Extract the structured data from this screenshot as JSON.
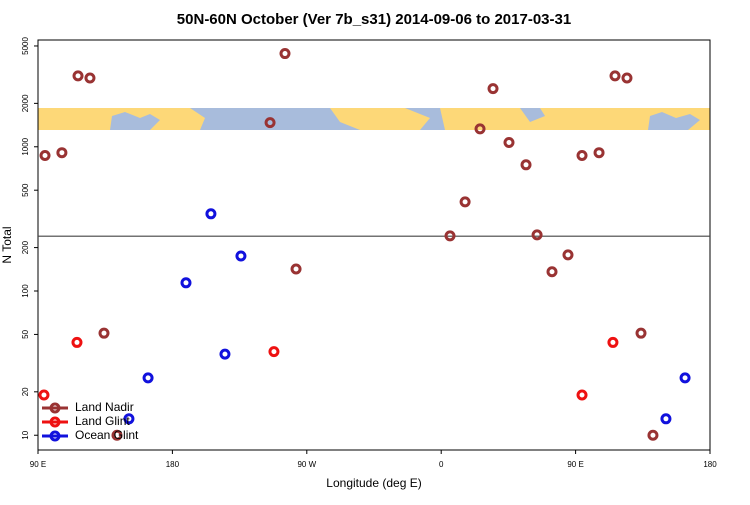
{
  "chart_data": {
    "type": "scatter",
    "title": "50N-60N October (Ver 7b_s31)   2014-09-06 to 2017-03-31",
    "xlabel": "Longitude (deg E)",
    "ylabel": "N Total",
    "xlim": [
      90,
      540
    ],
    "xticks": [
      {
        "value": 90,
        "label": "90 E"
      },
      180,
      {
        "value": 270,
        "label": "90 W"
      },
      {
        "value": 360,
        "label": "0"
      },
      {
        "value": 450,
        "label": "90 E"
      },
      {
        "value": 540,
        "label": "180"
      }
    ],
    "ylim": [
      7.9,
      5500
    ],
    "yscale": "log",
    "yticks": [
      10,
      20,
      50,
      100,
      200,
      500,
      1000,
      2000,
      5000
    ],
    "hline": 240,
    "legend": "bottom-left",
    "series": [
      {
        "name": "Land Nadir",
        "color": "#993333",
        "x": [
          94.7,
          106,
          116.8,
          124.8,
          134.2,
          142.9,
          245.4,
          255.4,
          262.8,
          365.9,
          376,
          386,
          394.7,
          405.4,
          416.8,
          424.2,
          434.2,
          444.9,
          454.3,
          465.7,
          476.4,
          484.4,
          493.8,
          501.8
        ],
        "values": [
          870,
          910,
          3100,
          3000,
          51,
          10,
          1470,
          4430,
          142,
          241,
          415,
          1330,
          2530,
          1070,
          750,
          245,
          136,
          178,
          870,
          910,
          3100,
          3000,
          51,
          10
        ]
      },
      {
        "name": "Land Glint",
        "color": "#ee1111",
        "x": [
          94,
          116.1,
          248,
          454.3,
          475
        ],
        "values": [
          19,
          44,
          38,
          19,
          44
        ]
      },
      {
        "name": "Ocean Glint",
        "color": "#1111dd",
        "x": [
          150.9,
          163.7,
          189.1,
          205.8,
          215.2,
          225.9,
          510.5,
          523.3
        ],
        "values": [
          13,
          25,
          114,
          343,
          36.5,
          175,
          13,
          25
        ]
      }
    ]
  }
}
